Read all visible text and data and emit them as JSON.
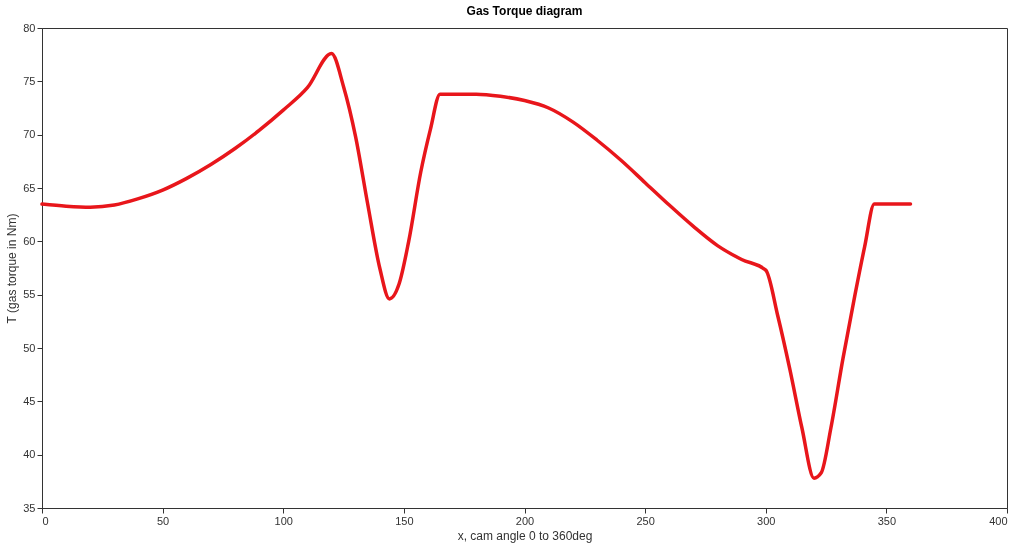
{
  "chart_data": {
    "type": "line",
    "title": "Gas Torque diagram",
    "xlabel": "x, cam angle 0 to 360deg",
    "ylabel": "T (gas torque in Nm)",
    "xlim": [
      0,
      400
    ],
    "xticks": [
      0,
      50,
      100,
      150,
      200,
      250,
      300,
      350,
      400
    ],
    "ylim": [
      35,
      80
    ],
    "yticks": [
      35,
      40,
      45,
      50,
      55,
      60,
      65,
      70,
      75,
      80
    ],
    "grid": false,
    "line_style": "solid",
    "marker": "none",
    "series": [
      {
        "color": "#e8161b",
        "x": [
          0,
          10,
          20,
          30,
          40,
          50,
          60,
          70,
          80,
          90,
          100,
          110,
          120,
          125,
          130,
          135,
          140,
          144,
          148,
          152,
          157,
          161,
          165,
          180,
          190,
          200,
          210,
          220,
          230,
          240,
          250,
          260,
          270,
          280,
          290,
          300,
          305,
          310,
          315,
          320,
          323,
          327,
          332,
          337,
          341,
          345,
          360
        ],
        "values": [
          63.5,
          63.3,
          63.2,
          63.4,
          64.0,
          64.8,
          65.9,
          67.2,
          68.7,
          70.4,
          72.3,
          74.4,
          77.6,
          74.5,
          69.8,
          63.5,
          57.5,
          54.6,
          56.0,
          60.0,
          66.5,
          70.5,
          73.8,
          73.8,
          73.6,
          73.2,
          72.5,
          71.2,
          69.5,
          67.6,
          65.5,
          63.4,
          61.4,
          59.6,
          58.3,
          57.3,
          53.0,
          48.0,
          42.5,
          37.8,
          38.3,
          42.5,
          49.0,
          55.0,
          59.5,
          63.5,
          63.5
        ]
      }
    ]
  }
}
